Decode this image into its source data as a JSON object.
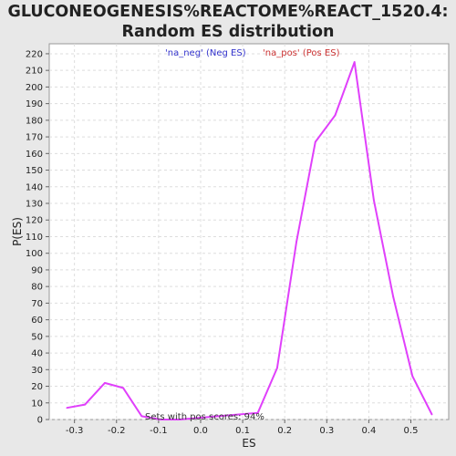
{
  "chart_data": {
    "type": "line",
    "title": "GLUCONEOGENESIS%REACTOME%REACT_1520.4:",
    "subtitle": "Random ES distribution",
    "xlabel": "ES",
    "ylabel": "P(ES)",
    "xlim": [
      -0.36,
      0.59
    ],
    "ylim": [
      0,
      226
    ],
    "x_ticks": [
      -0.3,
      -0.2,
      -0.1,
      0.0,
      0.1,
      0.2,
      0.3,
      0.4,
      0.5
    ],
    "x_tick_labels": [
      "-0.3",
      "-0.2",
      "-0.1",
      "0.0",
      "0.1",
      "0.2",
      "0.3",
      "0.4",
      "0.5"
    ],
    "y_ticks": [
      0,
      10,
      20,
      30,
      40,
      50,
      60,
      70,
      80,
      90,
      100,
      110,
      120,
      130,
      140,
      150,
      160,
      170,
      180,
      190,
      200,
      210,
      220
    ],
    "y_tick_labels": [
      "0",
      "10",
      "20",
      "30",
      "40",
      "50",
      "60",
      "70",
      "80",
      "90",
      "100",
      "110",
      "120",
      "130",
      "140",
      "150",
      "160",
      "170",
      "180",
      "190",
      "200",
      "210",
      "220"
    ],
    "grid": true,
    "legend": [
      {
        "label": "'na_neg' (Neg ES)",
        "color": "#3333cc"
      },
      {
        "label": "'na_pos' (Pos ES)",
        "color": "#cc3333"
      }
    ],
    "legend_position": "top-center",
    "annotation": "Sets with pos scores: 94%",
    "series": [
      {
        "color": "#e040fb",
        "x": [
          -0.318,
          -0.275,
          -0.228,
          -0.184,
          -0.14,
          -0.095,
          -0.05,
          0.136,
          0.182,
          0.228,
          0.273,
          0.32,
          0.366,
          0.412,
          0.458,
          0.504,
          0.55
        ],
        "y": [
          7,
          9,
          22,
          19,
          2,
          0,
          0,
          4,
          31,
          107,
          167,
          183,
          215,
          132,
          74,
          26,
          3
        ]
      }
    ]
  }
}
